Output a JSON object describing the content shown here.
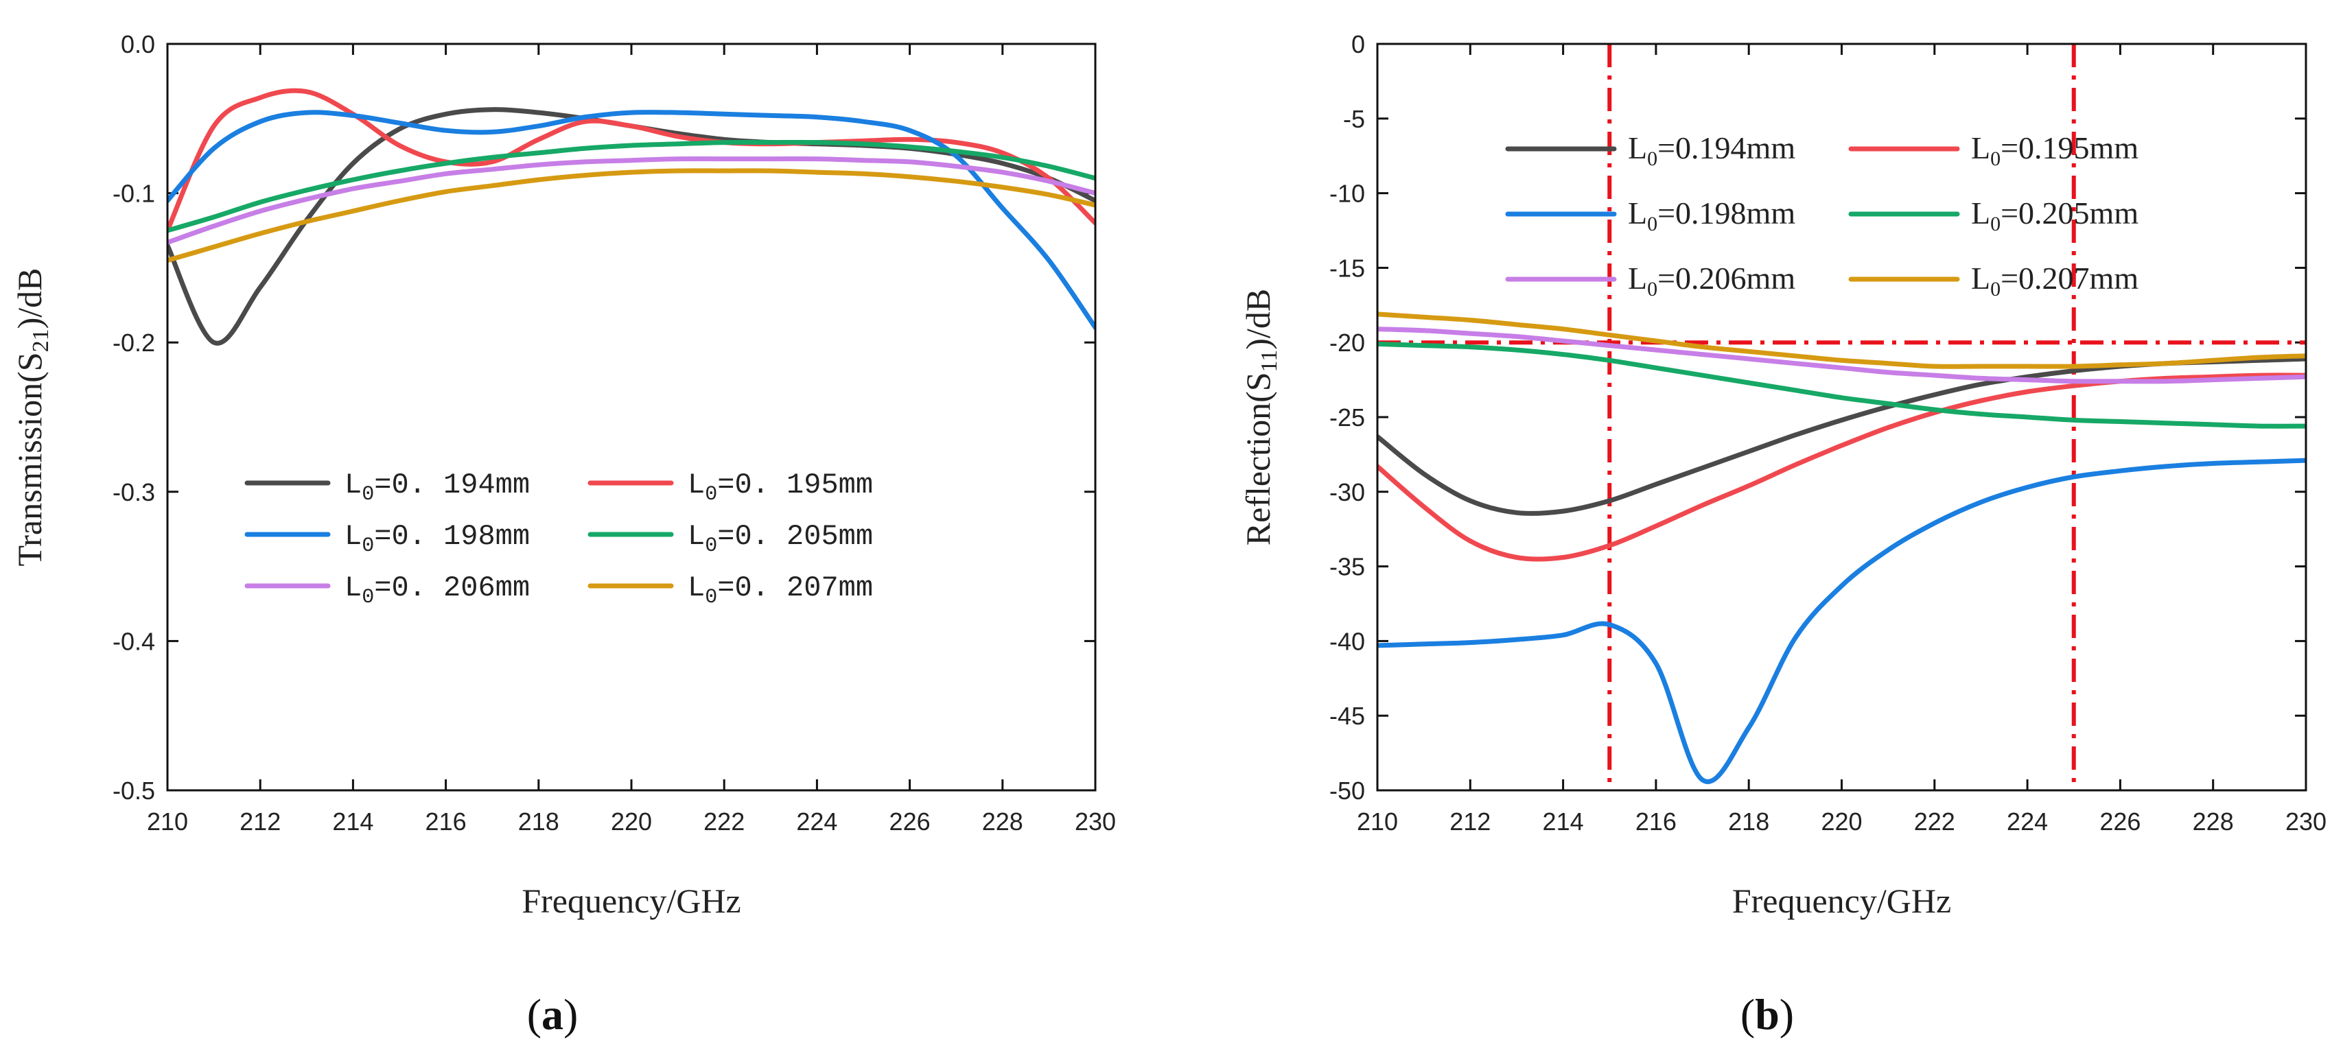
{
  "colors": {
    "L0_194": "#4a4a4a",
    "L0_195": "#f0484f",
    "L0_198": "#1a7fe0",
    "L0_205": "#16a866",
    "L0_206": "#c77ee6",
    "L0_207": "#d69a12",
    "reference": "#e8121c"
  },
  "chart_data": [
    {
      "type": "line",
      "panel_label_open": "(",
      "panel_label_letter": "a",
      "panel_label_close": ")",
      "title": "",
      "xlabel": "Frequency/GHz",
      "ylabel_prefix": "Transmission(S",
      "ylabel_sub": "21",
      "ylabel_suffix": ")/dB",
      "xlim": [
        210,
        230
      ],
      "ylim": [
        -0.5,
        0.0
      ],
      "xticks": [
        210,
        212,
        214,
        216,
        218,
        220,
        222,
        224,
        226,
        228,
        230
      ],
      "xtick_labels": [
        "210",
        "212",
        "214",
        "216",
        "218",
        "220",
        "222",
        "224",
        "226",
        "228",
        "230"
      ],
      "yticks": [
        0.0,
        -0.1,
        -0.2,
        -0.3,
        -0.4,
        -0.5
      ],
      "ytick_labels": [
        "0.0",
        "-0.1",
        "-0.2",
        "-0.3",
        "-0.4",
        "-0.5"
      ],
      "legend_placement": "center-left",
      "x": [
        210,
        211,
        212,
        213,
        214,
        215,
        216,
        217,
        218,
        219,
        220,
        221,
        222,
        223,
        224,
        225,
        226,
        227,
        228,
        229,
        230
      ],
      "series": [
        {
          "key": "L0_194",
          "name_prefix": "L",
          "name_sub": "0",
          "name_suffix": "=0. 194mm",
          "values": [
            -0.135,
            -0.2,
            -0.163,
            -0.118,
            -0.08,
            -0.057,
            -0.047,
            -0.044,
            -0.046,
            -0.05,
            -0.055,
            -0.06,
            -0.064,
            -0.066,
            -0.067,
            -0.068,
            -0.07,
            -0.074,
            -0.08,
            -0.09,
            -0.105
          ]
        },
        {
          "key": "L0_195",
          "name_prefix": "L",
          "name_sub": "0",
          "name_suffix": "=0. 195mm",
          "values": [
            -0.125,
            -0.055,
            -0.036,
            -0.032,
            -0.047,
            -0.068,
            -0.079,
            -0.079,
            -0.064,
            -0.052,
            -0.055,
            -0.062,
            -0.066,
            -0.067,
            -0.066,
            -0.065,
            -0.064,
            -0.066,
            -0.073,
            -0.09,
            -0.12
          ]
        },
        {
          "key": "L0_198",
          "name_prefix": "L",
          "name_sub": "0",
          "name_suffix": "=0. 198mm",
          "values": [
            -0.105,
            -0.07,
            -0.052,
            -0.046,
            -0.048,
            -0.053,
            -0.058,
            -0.059,
            -0.055,
            -0.049,
            -0.046,
            -0.046,
            -0.047,
            -0.048,
            -0.049,
            -0.052,
            -0.058,
            -0.075,
            -0.11,
            -0.145,
            -0.19
          ]
        },
        {
          "key": "L0_205",
          "name_prefix": "L",
          "name_sub": "0",
          "name_suffix": "=0. 205mm",
          "values": [
            -0.125,
            -0.116,
            -0.106,
            -0.098,
            -0.091,
            -0.085,
            -0.08,
            -0.076,
            -0.073,
            -0.07,
            -0.068,
            -0.067,
            -0.066,
            -0.066,
            -0.066,
            -0.067,
            -0.069,
            -0.072,
            -0.076,
            -0.082,
            -0.09
          ]
        },
        {
          "key": "L0_206",
          "name_prefix": "L",
          "name_sub": "0",
          "name_suffix": "=0. 206mm",
          "values": [
            -0.133,
            -0.122,
            -0.112,
            -0.104,
            -0.097,
            -0.092,
            -0.087,
            -0.084,
            -0.081,
            -0.079,
            -0.078,
            -0.077,
            -0.077,
            -0.077,
            -0.077,
            -0.078,
            -0.079,
            -0.082,
            -0.086,
            -0.092,
            -0.1
          ]
        },
        {
          "key": "L0_207",
          "name_prefix": "L",
          "name_sub": "0",
          "name_suffix": "=0. 207mm",
          "values": [
            -0.145,
            -0.136,
            -0.127,
            -0.119,
            -0.112,
            -0.105,
            -0.099,
            -0.095,
            -0.091,
            -0.088,
            -0.086,
            -0.085,
            -0.085,
            -0.085,
            -0.086,
            -0.087,
            -0.089,
            -0.092,
            -0.096,
            -0.101,
            -0.108
          ]
        }
      ]
    },
    {
      "type": "line",
      "panel_label_open": "(",
      "panel_label_letter": "b",
      "panel_label_close": ")",
      "title": "",
      "xlabel": "Frequency/GHz",
      "ylabel_prefix": "Reflection(S",
      "ylabel_sub": "11",
      "ylabel_suffix": ")/dB",
      "xlim": [
        210,
        230
      ],
      "ylim": [
        -50,
        0
      ],
      "xticks": [
        210,
        212,
        214,
        216,
        218,
        220,
        222,
        224,
        226,
        228,
        230
      ],
      "xtick_labels": [
        "210",
        "212",
        "214",
        "216",
        "218",
        "220",
        "222",
        "224",
        "226",
        "228",
        "230"
      ],
      "yticks": [
        0,
        -5,
        -10,
        -15,
        -20,
        -25,
        -30,
        -35,
        -40,
        -45,
        -50
      ],
      "ytick_labels": [
        "0",
        "-5",
        "-10",
        "-15",
        "-20",
        "-25",
        "-30",
        "-35",
        "-40",
        "-45",
        "-50"
      ],
      "legend_placement": "top-center",
      "reference_lines": {
        "horizontal_y": -20,
        "vertical_x": [
          215,
          225
        ]
      },
      "x": [
        210,
        211,
        212,
        213,
        214,
        215,
        216,
        217,
        218,
        219,
        220,
        221,
        222,
        223,
        224,
        225,
        226,
        227,
        228,
        229,
        230
      ],
      "series": [
        {
          "key": "L0_194",
          "name_prefix": "L",
          "name_sub": "0",
          "name_suffix": "=0.194mm",
          "values": [
            -26.3,
            -28.8,
            -30.6,
            -31.4,
            -31.3,
            -30.6,
            -29.5,
            -28.4,
            -27.3,
            -26.2,
            -25.2,
            -24.3,
            -23.5,
            -22.8,
            -22.3,
            -21.9,
            -21.6,
            -21.4,
            -21.3,
            -21.2,
            -21.1
          ]
        },
        {
          "key": "L0_195",
          "name_prefix": "L",
          "name_sub": "0",
          "name_suffix": "=0.195mm",
          "values": [
            -28.3,
            -31.0,
            -33.3,
            -34.4,
            -34.4,
            -33.6,
            -32.3,
            -30.9,
            -29.6,
            -28.2,
            -26.9,
            -25.7,
            -24.7,
            -23.9,
            -23.3,
            -22.9,
            -22.6,
            -22.4,
            -22.3,
            -22.2,
            -22.2
          ]
        },
        {
          "key": "L0_198",
          "name_prefix": "L",
          "name_sub": "0",
          "name_suffix": "=0.198mm",
          "values": [
            -40.3,
            -40.2,
            -40.1,
            -39.9,
            -39.6,
            -38.9,
            -41.5,
            -49.3,
            -45.8,
            -39.8,
            -36.3,
            -33.9,
            -32.1,
            -30.7,
            -29.7,
            -29.0,
            -28.6,
            -28.3,
            -28.1,
            -28.0,
            -27.9
          ]
        },
        {
          "key": "L0_205",
          "name_prefix": "L",
          "name_sub": "0",
          "name_suffix": "=0.205mm",
          "values": [
            -20.1,
            -20.2,
            -20.3,
            -20.5,
            -20.8,
            -21.2,
            -21.7,
            -22.2,
            -22.7,
            -23.2,
            -23.7,
            -24.1,
            -24.5,
            -24.8,
            -25.0,
            -25.2,
            -25.3,
            -25.4,
            -25.5,
            -25.6,
            -25.6
          ]
        },
        {
          "key": "L0_206",
          "name_prefix": "L",
          "name_sub": "0",
          "name_suffix": "=0.206mm",
          "values": [
            -19.1,
            -19.2,
            -19.4,
            -19.6,
            -19.9,
            -20.2,
            -20.5,
            -20.8,
            -21.1,
            -21.4,
            -21.7,
            -22.0,
            -22.2,
            -22.4,
            -22.5,
            -22.6,
            -22.6,
            -22.6,
            -22.5,
            -22.4,
            -22.3
          ]
        },
        {
          "key": "L0_207",
          "name_prefix": "L",
          "name_sub": "0",
          "name_suffix": "=0.207mm",
          "values": [
            -18.1,
            -18.3,
            -18.5,
            -18.8,
            -19.1,
            -19.5,
            -19.9,
            -20.3,
            -20.6,
            -20.9,
            -21.2,
            -21.4,
            -21.6,
            -21.6,
            -21.6,
            -21.6,
            -21.5,
            -21.4,
            -21.2,
            -21.0,
            -20.9
          ]
        }
      ]
    }
  ]
}
